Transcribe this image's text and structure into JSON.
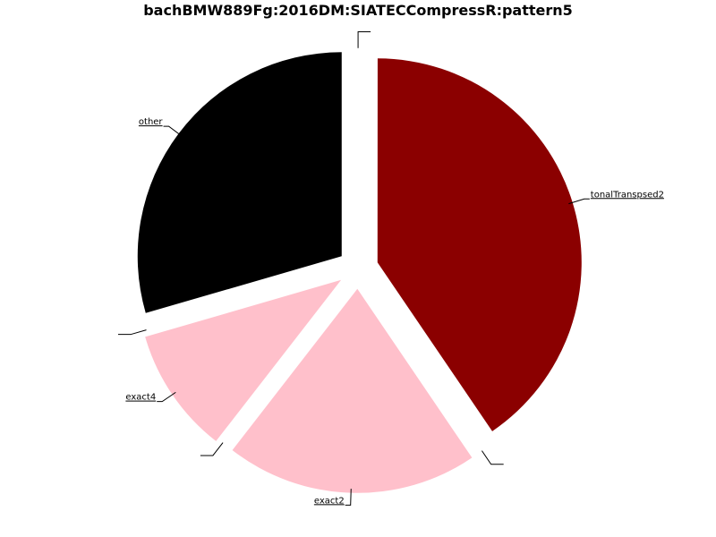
{
  "chart_data": {
    "type": "pie",
    "title": "bachBMW889Fg:2016DM:SIATECCompressR:pattern5",
    "slices": [
      {
        "label": "other",
        "value": 29.5,
        "color": "#000000"
      },
      {
        "label": "",
        "value": 0.01,
        "color": "#ffffff"
      },
      {
        "label": "exact4",
        "value": 10.0,
        "color": "#ffc0cb"
      },
      {
        "label": "",
        "value": 0.01,
        "color": "#ffffff"
      },
      {
        "label": "exact2",
        "value": 20.0,
        "color": "#ffc0cb"
      },
      {
        "label": "",
        "value": 0.01,
        "color": "#ffffff"
      },
      {
        "label": "tonalTranspsed2",
        "value": 40.5,
        "color": "#8b0000"
      },
      {
        "label": "",
        "value": 0.01,
        "color": "#ffffff"
      }
    ]
  }
}
